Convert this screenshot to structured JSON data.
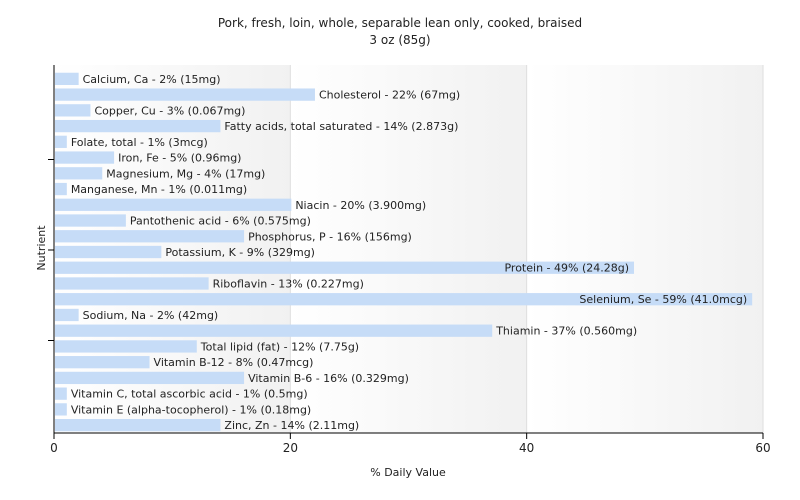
{
  "chart_data": {
    "type": "bar",
    "orientation": "horizontal",
    "title": "Pork, fresh, loin, whole, separable lean only, cooked, braised",
    "subtitle": "3 oz (85g)",
    "xlabel": "% Daily Value",
    "ylabel": "Nutrient",
    "xlim": [
      0,
      60
    ],
    "xticks": [
      "0",
      "20",
      "40",
      "60"
    ],
    "grid": true,
    "bar_color": "#c6dcf7",
    "categories": [
      "Calcium, Ca",
      "Cholesterol",
      "Copper, Cu",
      "Fatty acids, total saturated",
      "Folate, total",
      "Iron, Fe",
      "Magnesium, Mg",
      "Manganese, Mn",
      "Niacin",
      "Pantothenic acid",
      "Phosphorus, P",
      "Potassium, K",
      "Protein",
      "Riboflavin",
      "Selenium, Se",
      "Sodium, Na",
      "Thiamin",
      "Total lipid (fat)",
      "Vitamin B-12",
      "Vitamin B-6",
      "Vitamin C, total ascorbic acid",
      "Vitamin E (alpha-tocopherol)",
      "Zinc, Zn"
    ],
    "values": [
      2,
      22,
      3,
      14,
      1,
      5,
      4,
      1,
      20,
      6,
      16,
      9,
      49,
      13,
      59,
      2,
      37,
      12,
      8,
      16,
      1,
      1,
      14
    ],
    "labels": [
      "Calcium, Ca - 2% (15mg)",
      "Cholesterol - 22% (67mg)",
      "Copper, Cu - 3% (0.067mg)",
      "Fatty acids, total saturated - 14% (2.873g)",
      "Folate, total - 1% (3mcg)",
      "Iron, Fe - 5% (0.96mg)",
      "Magnesium, Mg - 4% (17mg)",
      "Manganese, Mn - 1% (0.011mg)",
      "Niacin - 20% (3.900mg)",
      "Pantothenic acid - 6% (0.575mg)",
      "Phosphorus, P - 16% (156mg)",
      "Potassium, K - 9% (329mg)",
      "Protein - 49% (24.28g)",
      "Riboflavin - 13% (0.227mg)",
      "Selenium, Se - 59% (41.0mcg)",
      "Sodium, Na - 2% (42mg)",
      "Thiamin - 37% (0.560mg)",
      "Total lipid (fat) - 12% (7.75g)",
      "Vitamin B-12 - 8% (0.47mcg)",
      "Vitamin B-6 - 16% (0.329mg)",
      "Vitamin C, total ascorbic acid - 1% (0.5mg)",
      "Vitamin E (alpha-tocopherol) - 1% (0.18mg)",
      "Zinc, Zn - 14% (2.11mg)"
    ]
  }
}
